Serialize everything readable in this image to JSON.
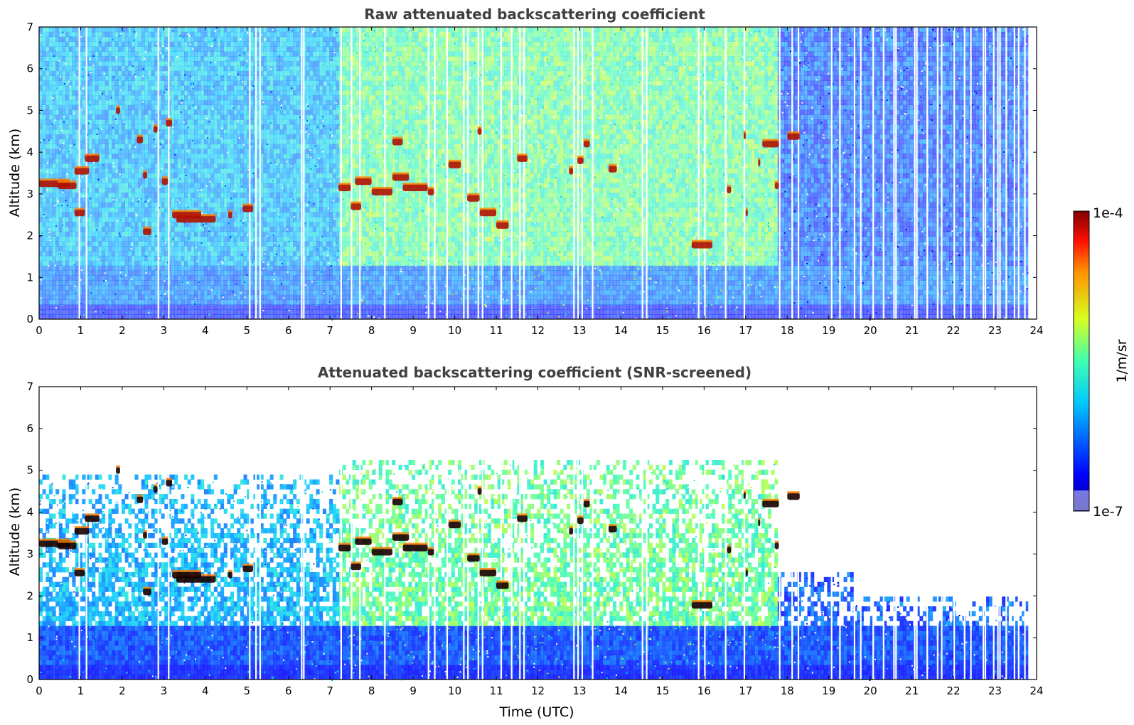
{
  "chart_data": [
    {
      "type": "heatmap",
      "title": "Raw attenuated backscattering coefficient",
      "xlabel": "",
      "ylabel": "Altitude (km)",
      "xlim": [
        0,
        24
      ],
      "ylim": [
        0,
        7
      ],
      "xticks": [
        "0",
        "1",
        "2",
        "3",
        "4",
        "5",
        "6",
        "7",
        "8",
        "9",
        "10",
        "11",
        "12",
        "13",
        "14",
        "15",
        "16",
        "17",
        "18",
        "19",
        "20",
        "21",
        "22",
        "23",
        "24"
      ],
      "yticks": [
        "0",
        "1",
        "2",
        "3",
        "4",
        "5",
        "6",
        "7"
      ],
      "data_end_time": 23.8,
      "colorscale": "jet",
      "noise_regime": [
        {
          "from": 0,
          "to": 7.2,
          "sky_level": "cyan-blue"
        },
        {
          "from": 7.2,
          "to": 17.8,
          "sky_level": "green-yellow"
        },
        {
          "from": 17.8,
          "to": 23.8,
          "sky_level": "blue"
        }
      ],
      "data_gaps_utc": [
        0.95,
        1.12,
        2.85,
        3.1,
        5.05,
        5.2,
        5.3,
        6.3,
        6.35,
        7.25,
        7.5,
        7.7,
        8.3,
        9.35,
        9.5,
        9.8,
        10.2,
        10.3,
        10.55,
        10.65,
        11.1,
        11.35,
        11.55,
        11.65,
        12.85,
        12.95,
        13.05,
        13.3,
        14.5,
        14.6,
        15.85,
        16.0,
        16.5,
        16.95,
        17.8,
        18.1,
        18.25,
        19.05,
        19.25,
        19.6,
        19.75,
        20.05,
        20.3,
        20.55,
        20.6,
        21.05,
        21.1,
        21.35,
        21.6,
        21.7,
        22.0,
        22.25,
        22.4,
        22.7,
        22.75,
        22.95,
        23.05,
        23.1,
        23.25,
        23.45,
        23.55,
        23.7
      ],
      "layers": [
        {
          "t0": 0.0,
          "t1": 0.75,
          "z": 3.25
        },
        {
          "t0": 0.45,
          "t1": 0.9,
          "z": 3.2
        },
        {
          "t0": 1.1,
          "t1": 1.45,
          "z": 3.85
        },
        {
          "t0": 0.85,
          "t1": 1.2,
          "z": 3.55
        },
        {
          "t0": 0.85,
          "t1": 1.1,
          "z": 2.55
        },
        {
          "t0": 1.85,
          "t1": 1.95,
          "z": 5.0
        },
        {
          "t0": 2.35,
          "t1": 2.5,
          "z": 4.3
        },
        {
          "t0": 2.75,
          "t1": 2.85,
          "z": 4.55
        },
        {
          "t0": 3.05,
          "t1": 3.2,
          "z": 4.7
        },
        {
          "t0": 2.5,
          "t1": 2.7,
          "z": 2.1
        },
        {
          "t0": 3.3,
          "t1": 4.25,
          "z": 2.4
        },
        {
          "t0": 3.2,
          "t1": 3.9,
          "z": 2.5
        },
        {
          "t0": 4.55,
          "t1": 4.65,
          "z": 2.5
        },
        {
          "t0": 4.9,
          "t1": 5.15,
          "z": 2.65
        },
        {
          "t0": 2.95,
          "t1": 3.1,
          "z": 3.3
        },
        {
          "t0": 2.5,
          "t1": 2.6,
          "z": 3.45
        },
        {
          "t0": 7.2,
          "t1": 7.5,
          "z": 3.15
        },
        {
          "t0": 7.6,
          "t1": 8.0,
          "z": 3.3
        },
        {
          "t0": 8.0,
          "t1": 8.5,
          "z": 3.05
        },
        {
          "t0": 7.5,
          "t1": 7.75,
          "z": 2.7
        },
        {
          "t0": 8.5,
          "t1": 8.75,
          "z": 4.25
        },
        {
          "t0": 8.75,
          "t1": 9.35,
          "z": 3.15
        },
        {
          "t0": 8.5,
          "t1": 8.9,
          "z": 3.4
        },
        {
          "t0": 9.35,
          "t1": 9.5,
          "z": 3.05
        },
        {
          "t0": 9.85,
          "t1": 10.15,
          "z": 3.7
        },
        {
          "t0": 10.3,
          "t1": 10.6,
          "z": 2.9
        },
        {
          "t0": 10.6,
          "t1": 11.0,
          "z": 2.55
        },
        {
          "t0": 11.0,
          "t1": 11.3,
          "z": 2.25
        },
        {
          "t0": 10.55,
          "t1": 10.65,
          "z": 4.5
        },
        {
          "t0": 11.5,
          "t1": 11.75,
          "z": 3.85
        },
        {
          "t0": 12.75,
          "t1": 12.85,
          "z": 3.55
        },
        {
          "t0": 12.95,
          "t1": 13.1,
          "z": 3.8
        },
        {
          "t0": 13.1,
          "t1": 13.25,
          "z": 4.2
        },
        {
          "t0": 13.7,
          "t1": 13.9,
          "z": 3.6
        },
        {
          "t0": 15.7,
          "t1": 16.2,
          "z": 1.78
        },
        {
          "t0": 16.55,
          "t1": 16.65,
          "z": 3.1
        },
        {
          "t0": 16.95,
          "t1": 17.0,
          "z": 4.4
        },
        {
          "t0": 17.3,
          "t1": 17.35,
          "z": 3.75
        },
        {
          "t0": 17.4,
          "t1": 17.8,
          "z": 4.2
        },
        {
          "t0": 18.0,
          "t1": 18.3,
          "z": 4.38
        },
        {
          "t0": 17.7,
          "t1": 17.8,
          "z": 3.2
        },
        {
          "t0": 17.0,
          "t1": 17.05,
          "z": 2.55
        }
      ]
    },
    {
      "type": "heatmap",
      "title": "Attenuated backscattering coefficient (SNR-screened)",
      "xlabel": "Time (UTC)",
      "ylabel": "Altitude (km)",
      "xlim": [
        0,
        24
      ],
      "ylim": [
        0,
        7
      ],
      "xticks": [
        "0",
        "1",
        "2",
        "3",
        "4",
        "5",
        "6",
        "7",
        "8",
        "9",
        "10",
        "11",
        "12",
        "13",
        "14",
        "15",
        "16",
        "17",
        "18",
        "19",
        "20",
        "21",
        "22",
        "23",
        "24"
      ],
      "yticks": [
        "0",
        "1",
        "2",
        "3",
        "4",
        "5",
        "6",
        "7"
      ],
      "data_end_time": 23.8,
      "colorscale": "jet",
      "screened_top_km": [
        {
          "from": 0,
          "to": 7.2,
          "z": 4.8
        },
        {
          "from": 7.2,
          "to": 17.8,
          "z": 5.2
        },
        {
          "from": 17.8,
          "to": 19.6,
          "z": 2.5
        },
        {
          "from": 19.6,
          "to": 23.8,
          "z": 1.9
        }
      ]
    }
  ],
  "colorbar": {
    "label": "1/m/sr",
    "max_label": "1e-4",
    "min_label": "1e-7",
    "scale": "log",
    "range": [
      1e-07,
      0.0001
    ]
  }
}
